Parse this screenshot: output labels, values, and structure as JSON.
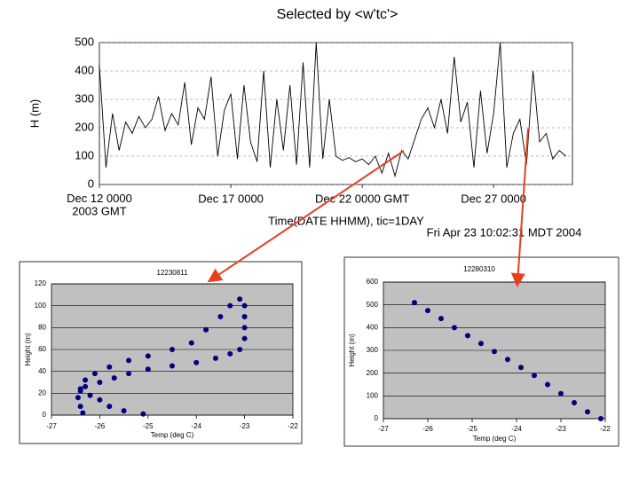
{
  "chart_data": [
    {
      "type": "line",
      "title": "Selected by <w'tc'>",
      "y_label": "H (m)",
      "x_label": "Time(DATE HHMM), tic=1DAY",
      "annotation": "Fri Apr 23 10:02:31 MDT 2004",
      "color": "#000000",
      "grid": true,
      "xlim": [
        "2003-12-12 00:00",
        "2003-12-30 00:00"
      ],
      "xticks": [
        {
          "value": "2003-12-12 00:00",
          "label": "Dec 12 0000\n2003 GMT"
        },
        {
          "value": "2003-12-17 00:00",
          "label": "Dec 17 0000"
        },
        {
          "value": "2003-12-22 00:00",
          "label": "Dec 22 0000 GMT"
        },
        {
          "value": "2003-12-27 00:00",
          "label": "Dec 27 0000"
        }
      ],
      "ylim": [
        0,
        500
      ],
      "yticks": [
        0,
        100,
        200,
        300,
        400,
        500
      ],
      "x": [
        "2003-12-12 00:00",
        "2003-12-12 06:00",
        "2003-12-12 12:00",
        "2003-12-12 18:00",
        "2003-12-13 00:00",
        "2003-12-13 06:00",
        "2003-12-13 12:00",
        "2003-12-13 18:00",
        "2003-12-14 00:00",
        "2003-12-14 06:00",
        "2003-12-14 12:00",
        "2003-12-14 18:00",
        "2003-12-15 00:00",
        "2003-12-15 06:00",
        "2003-12-15 12:00",
        "2003-12-15 18:00",
        "2003-12-16 00:00",
        "2003-12-16 06:00",
        "2003-12-16 12:00",
        "2003-12-16 18:00",
        "2003-12-17 00:00",
        "2003-12-17 06:00",
        "2003-12-17 12:00",
        "2003-12-17 18:00",
        "2003-12-18 00:00",
        "2003-12-18 06:00",
        "2003-12-18 12:00",
        "2003-12-18 18:00",
        "2003-12-19 00:00",
        "2003-12-19 06:00",
        "2003-12-19 12:00",
        "2003-12-19 18:00",
        "2003-12-20 00:00",
        "2003-12-20 06:00",
        "2003-12-20 12:00",
        "2003-12-20 18:00",
        "2003-12-21 00:00",
        "2003-12-21 06:00",
        "2003-12-21 12:00",
        "2003-12-21 18:00",
        "2003-12-22 00:00",
        "2003-12-22 06:00",
        "2003-12-22 12:00",
        "2003-12-22 18:00",
        "2003-12-23 00:00",
        "2003-12-23 06:00",
        "2003-12-23 12:00",
        "2003-12-23 18:00",
        "2003-12-24 00:00",
        "2003-12-24 06:00",
        "2003-12-24 12:00",
        "2003-12-24 18:00",
        "2003-12-25 00:00",
        "2003-12-25 06:00",
        "2003-12-25 12:00",
        "2003-12-25 18:00",
        "2003-12-26 00:00",
        "2003-12-26 06:00",
        "2003-12-26 12:00",
        "2003-12-26 18:00",
        "2003-12-27 00:00",
        "2003-12-27 06:00",
        "2003-12-27 12:00",
        "2003-12-27 18:00",
        "2003-12-28 00:00",
        "2003-12-28 06:00",
        "2003-12-28 12:00",
        "2003-12-28 18:00",
        "2003-12-29 00:00",
        "2003-12-29 06:00",
        "2003-12-29 12:00",
        "2003-12-29 18:00"
      ],
      "values": [
        420,
        60,
        250,
        120,
        220,
        180,
        240,
        200,
        230,
        310,
        190,
        250,
        210,
        360,
        140,
        270,
        230,
        380,
        100,
        260,
        320,
        90,
        350,
        150,
        80,
        400,
        60,
        300,
        120,
        350,
        70,
        430,
        60,
        500,
        90,
        300,
        100,
        85,
        95,
        80,
        90,
        70,
        100,
        40,
        110,
        30,
        120,
        90,
        160,
        230,
        270,
        200,
        300,
        180,
        450,
        220,
        290,
        60,
        330,
        110,
        250,
        500,
        60,
        180,
        230,
        70,
        400,
        150,
        180,
        90,
        120,
        100
      ]
    },
    {
      "type": "scatter",
      "title": "12230811",
      "x_label": "Temp (deg C)",
      "y_label": "Height (m)",
      "color": "#000080",
      "grid": true,
      "xlim": [
        -27,
        -22
      ],
      "xticks": [
        -27,
        -26,
        -25,
        -24,
        -23,
        -22
      ],
      "ylim": [
        0,
        120
      ],
      "yticks": [
        0,
        20,
        40,
        60,
        80,
        100,
        120
      ],
      "x": [
        -25.1,
        -25.5,
        -25.8,
        -26.0,
        -26.2,
        -26.4,
        -26.3,
        -26.0,
        -25.7,
        -25.4,
        -25.0,
        -24.5,
        -24.0,
        -23.6,
        -23.3,
        -23.1,
        -23.0,
        -23.0,
        -23.0,
        -23.0,
        -23.1,
        -23.3,
        -23.5,
        -23.8,
        -24.1,
        -24.5,
        -25.0,
        -25.4,
        -25.8,
        -26.1,
        -26.3,
        -26.4,
        -26.45,
        -26.4,
        -26.35
      ],
      "values": [
        1,
        4,
        8,
        14,
        18,
        22,
        26,
        30,
        34,
        38,
        42,
        45,
        48,
        52,
        56,
        60,
        70,
        80,
        90,
        100,
        106,
        100,
        90,
        78,
        66,
        60,
        54,
        50,
        44,
        38,
        32,
        24,
        16,
        8,
        2
      ]
    },
    {
      "type": "scatter",
      "title": "12280310",
      "x_label": "Temp (deg C)",
      "y_label": "Height (m)",
      "color": "#000080",
      "grid": true,
      "xlim": [
        -27,
        -22
      ],
      "xticks": [
        -27,
        -26,
        -25,
        -24,
        -23,
        -22
      ],
      "ylim": [
        0,
        600
      ],
      "yticks": [
        0,
        100,
        200,
        300,
        400,
        500,
        600
      ],
      "x": [
        -26.3,
        -26.0,
        -25.7,
        -25.4,
        -25.1,
        -24.8,
        -24.5,
        -24.2,
        -23.9,
        -23.6,
        -23.3,
        -23.0,
        -22.7,
        -22.4,
        -22.1
      ],
      "values": [
        510,
        475,
        440,
        400,
        365,
        330,
        295,
        260,
        225,
        190,
        150,
        110,
        70,
        30,
        0
      ]
    }
  ]
}
